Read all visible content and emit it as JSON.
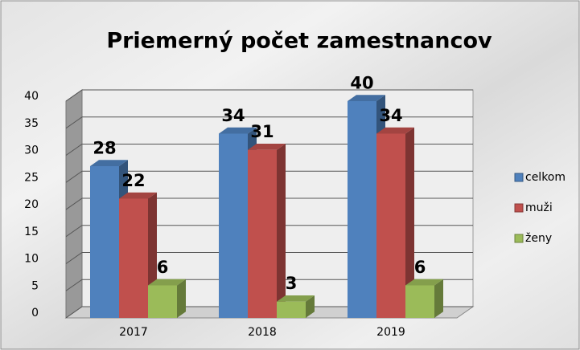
{
  "chart_data": {
    "type": "bar3d",
    "title": "Priemerný počet zamestnancov",
    "categories": [
      "2017",
      "2018",
      "2019"
    ],
    "series": [
      {
        "name": "celkom",
        "color": "#4f81bd",
        "values": [
          28,
          34,
          40
        ]
      },
      {
        "name": "muži",
        "color": "#c0504d",
        "values": [
          22,
          31,
          34
        ]
      },
      {
        "name": "ženy",
        "color": "#9bbb59",
        "values": [
          6,
          3,
          6
        ]
      }
    ],
    "ylim": [
      0,
      40
    ],
    "yticks": [
      0,
      5,
      10,
      15,
      20,
      25,
      30,
      35,
      40
    ],
    "grid": true,
    "legend": "right"
  }
}
